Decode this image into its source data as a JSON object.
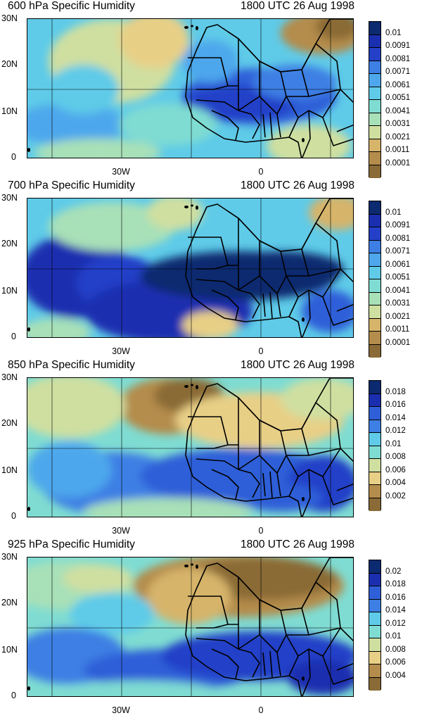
{
  "time_label": "1800 UTC 26 Aug 1998",
  "axes": {
    "y_ticks": [
      "30N",
      "20N",
      "10N",
      "0"
    ],
    "x_ticks": [
      "30W",
      "0"
    ]
  },
  "panels": [
    {
      "title": "600 hPa Specific Humidity",
      "colorbar": [
        "0.01",
        "0.0091",
        "0.0081",
        "0.0071",
        "0.0061",
        "0.0051",
        "0.0041",
        "0.0031",
        "0.0021",
        "0.0011",
        "0.0001"
      ],
      "colors": [
        "#0b2a6f",
        "#1a2fb0",
        "#2440c8",
        "#2f5fd8",
        "#3d7fe4",
        "#4ea7ec",
        "#5fcbe8",
        "#7fdcd2",
        "#a8e0b8",
        "#cfdfa0",
        "#e8cf86",
        "#d6b46a",
        "#b48c4c",
        "#8a6a36"
      ]
    },
    {
      "title": "700 hPa Specific Humidity",
      "colorbar": [
        "0.01",
        "0.0091",
        "0.0081",
        "0.0071",
        "0.0061",
        "0.0051",
        "0.0041",
        "0.0031",
        "0.0021",
        "0.0011",
        "0.0001"
      ],
      "colors": [
        "#0b2a6f",
        "#1a2fb0",
        "#2440c8",
        "#2f5fd8",
        "#3d7fe4",
        "#4ea7ec",
        "#5fcbe8",
        "#7fdcd2",
        "#a8e0b8",
        "#cfdfa0",
        "#e8cf86",
        "#d6b46a",
        "#b48c4c",
        "#8a6a36"
      ]
    },
    {
      "title": "850 hPa Specific Humidity",
      "colorbar": [
        "0.018",
        "0.016",
        "0.014",
        "0.012",
        "0.01",
        "0.008",
        "0.006",
        "0.004",
        "0.002"
      ],
      "colors": [
        "#0b2a6f",
        "#1a2fb0",
        "#2440c8",
        "#2f5fd8",
        "#3d7fe4",
        "#4ea7ec",
        "#5fcbe8",
        "#7fdcd2",
        "#a8e0b8",
        "#cfdfa0",
        "#e8cf86",
        "#d6b46a",
        "#b48c4c",
        "#8a6a36"
      ]
    },
    {
      "title": "925 hPa Specific Humidity",
      "colorbar": [
        "0.02",
        "0.018",
        "0.016",
        "0.014",
        "0.012",
        "0.01",
        "0.008",
        "0.006",
        "0.004"
      ],
      "colors": [
        "#0b2a6f",
        "#1a2fb0",
        "#2440c8",
        "#2f5fd8",
        "#3d7fe4",
        "#4ea7ec",
        "#5fcbe8",
        "#7fdcd2",
        "#a8e0b8",
        "#cfdfa0",
        "#e8cf86",
        "#d6b46a",
        "#b48c4c",
        "#8a6a36"
      ]
    }
  ]
}
